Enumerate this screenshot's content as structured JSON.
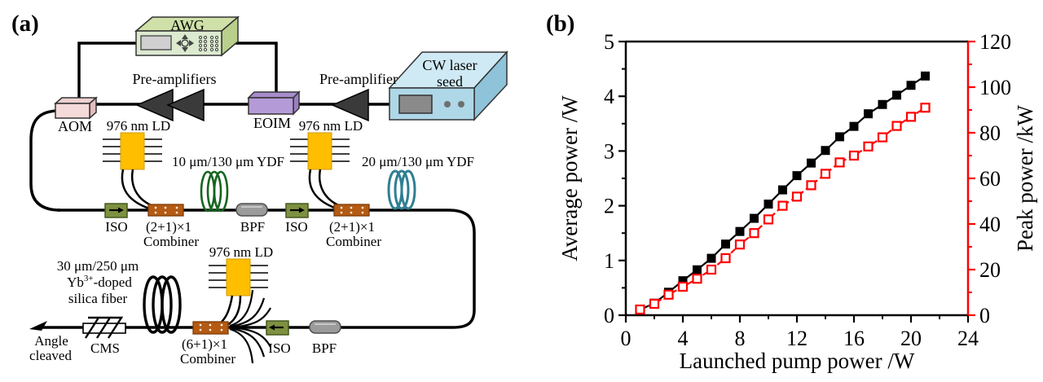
{
  "figure": {
    "panel_a_tag": "(a)",
    "panel_b_tag": "(b)"
  },
  "diagram": {
    "awg_label": "AWG",
    "cw_seed": {
      "line1": "CW laser",
      "line2": "seed"
    },
    "pre_amplifiers_label": "Pre-amplifiers",
    "pre_amplifier_label": "Pre-amplifier",
    "aom_label": "AOM",
    "eoim_label": "EOIM",
    "ld1_label": "976 nm LD",
    "ld2_label": "976 nm LD",
    "ld3_label": "976 nm LD",
    "ydf1_label": "10 μm/130 μm YDF",
    "ydf2_label": "20 μm/130 μm YDF",
    "iso1_label": "ISO",
    "iso2_label": "ISO",
    "iso3_label": "ISO",
    "combiner1": {
      "line1": "(2+1)×1",
      "line2": "Combiner"
    },
    "combiner2": {
      "line1": "(2+1)×1",
      "line2": "Combiner"
    },
    "combiner3": {
      "line1": "(6+1)×1",
      "line2": "Combiner"
    },
    "bpf1_label": "BPF",
    "bpf2_label": "BPF",
    "gain_fiber": {
      "line1": "30 μm/250 μm",
      "line2_base": "Yb",
      "line2_sup": "3+",
      "line2_rest": "-doped",
      "line3": "silica fiber"
    },
    "cms_label": "CMS",
    "output": {
      "line1": "Angle",
      "line2": "cleaved"
    }
  },
  "chart_data": {
    "type": "line",
    "title": "",
    "xlabel": "Launched pump power /W",
    "ylabel_left": "Average power /W",
    "ylabel_right": "Peak power /kW",
    "xlim": [
      0,
      24
    ],
    "ylim_left": [
      0,
      5
    ],
    "ylim_right": [
      0,
      120
    ],
    "x_ticks": [
      0,
      4,
      8,
      12,
      16,
      20,
      24
    ],
    "x_minor_ticks": [
      2,
      6,
      10,
      14,
      18,
      22
    ],
    "y_left_ticks": [
      0,
      1,
      2,
      3,
      4,
      5
    ],
    "y_left_minor_ticks": [
      0.5,
      1.5,
      2.5,
      3.5,
      4.5
    ],
    "y_right_ticks": [
      0,
      20,
      40,
      60,
      80,
      100,
      120
    ],
    "y_right_minor_ticks": [
      10,
      30,
      50,
      70,
      90,
      110
    ],
    "grid": false,
    "legend": "none",
    "axis_color_left": "#000000",
    "axis_color_right": "#fe0000",
    "x": [
      1,
      2,
      3,
      4,
      5,
      6,
      7,
      8,
      9,
      10,
      11,
      12,
      13,
      14,
      15,
      16,
      17,
      18,
      19,
      20,
      21
    ],
    "series": [
      {
        "name": "Average power",
        "axis": "left",
        "color": "#000000",
        "marker": "filled-square",
        "line": "solid",
        "values": [
          0.1,
          0.22,
          0.42,
          0.63,
          0.83,
          1.04,
          1.3,
          1.53,
          1.77,
          2.03,
          2.29,
          2.55,
          2.78,
          3.01,
          3.26,
          3.45,
          3.68,
          3.85,
          4.02,
          4.2,
          4.37
        ]
      },
      {
        "name": "Peak power",
        "axis": "right",
        "color": "#fe0000",
        "marker": "open-square",
        "line": "dashed",
        "values": [
          2.5,
          5,
          9,
          12.5,
          16,
          20,
          25,
          31,
          36,
          42,
          48,
          52,
          57,
          62,
          67,
          70,
          74,
          78,
          83,
          87,
          91
        ]
      }
    ]
  }
}
